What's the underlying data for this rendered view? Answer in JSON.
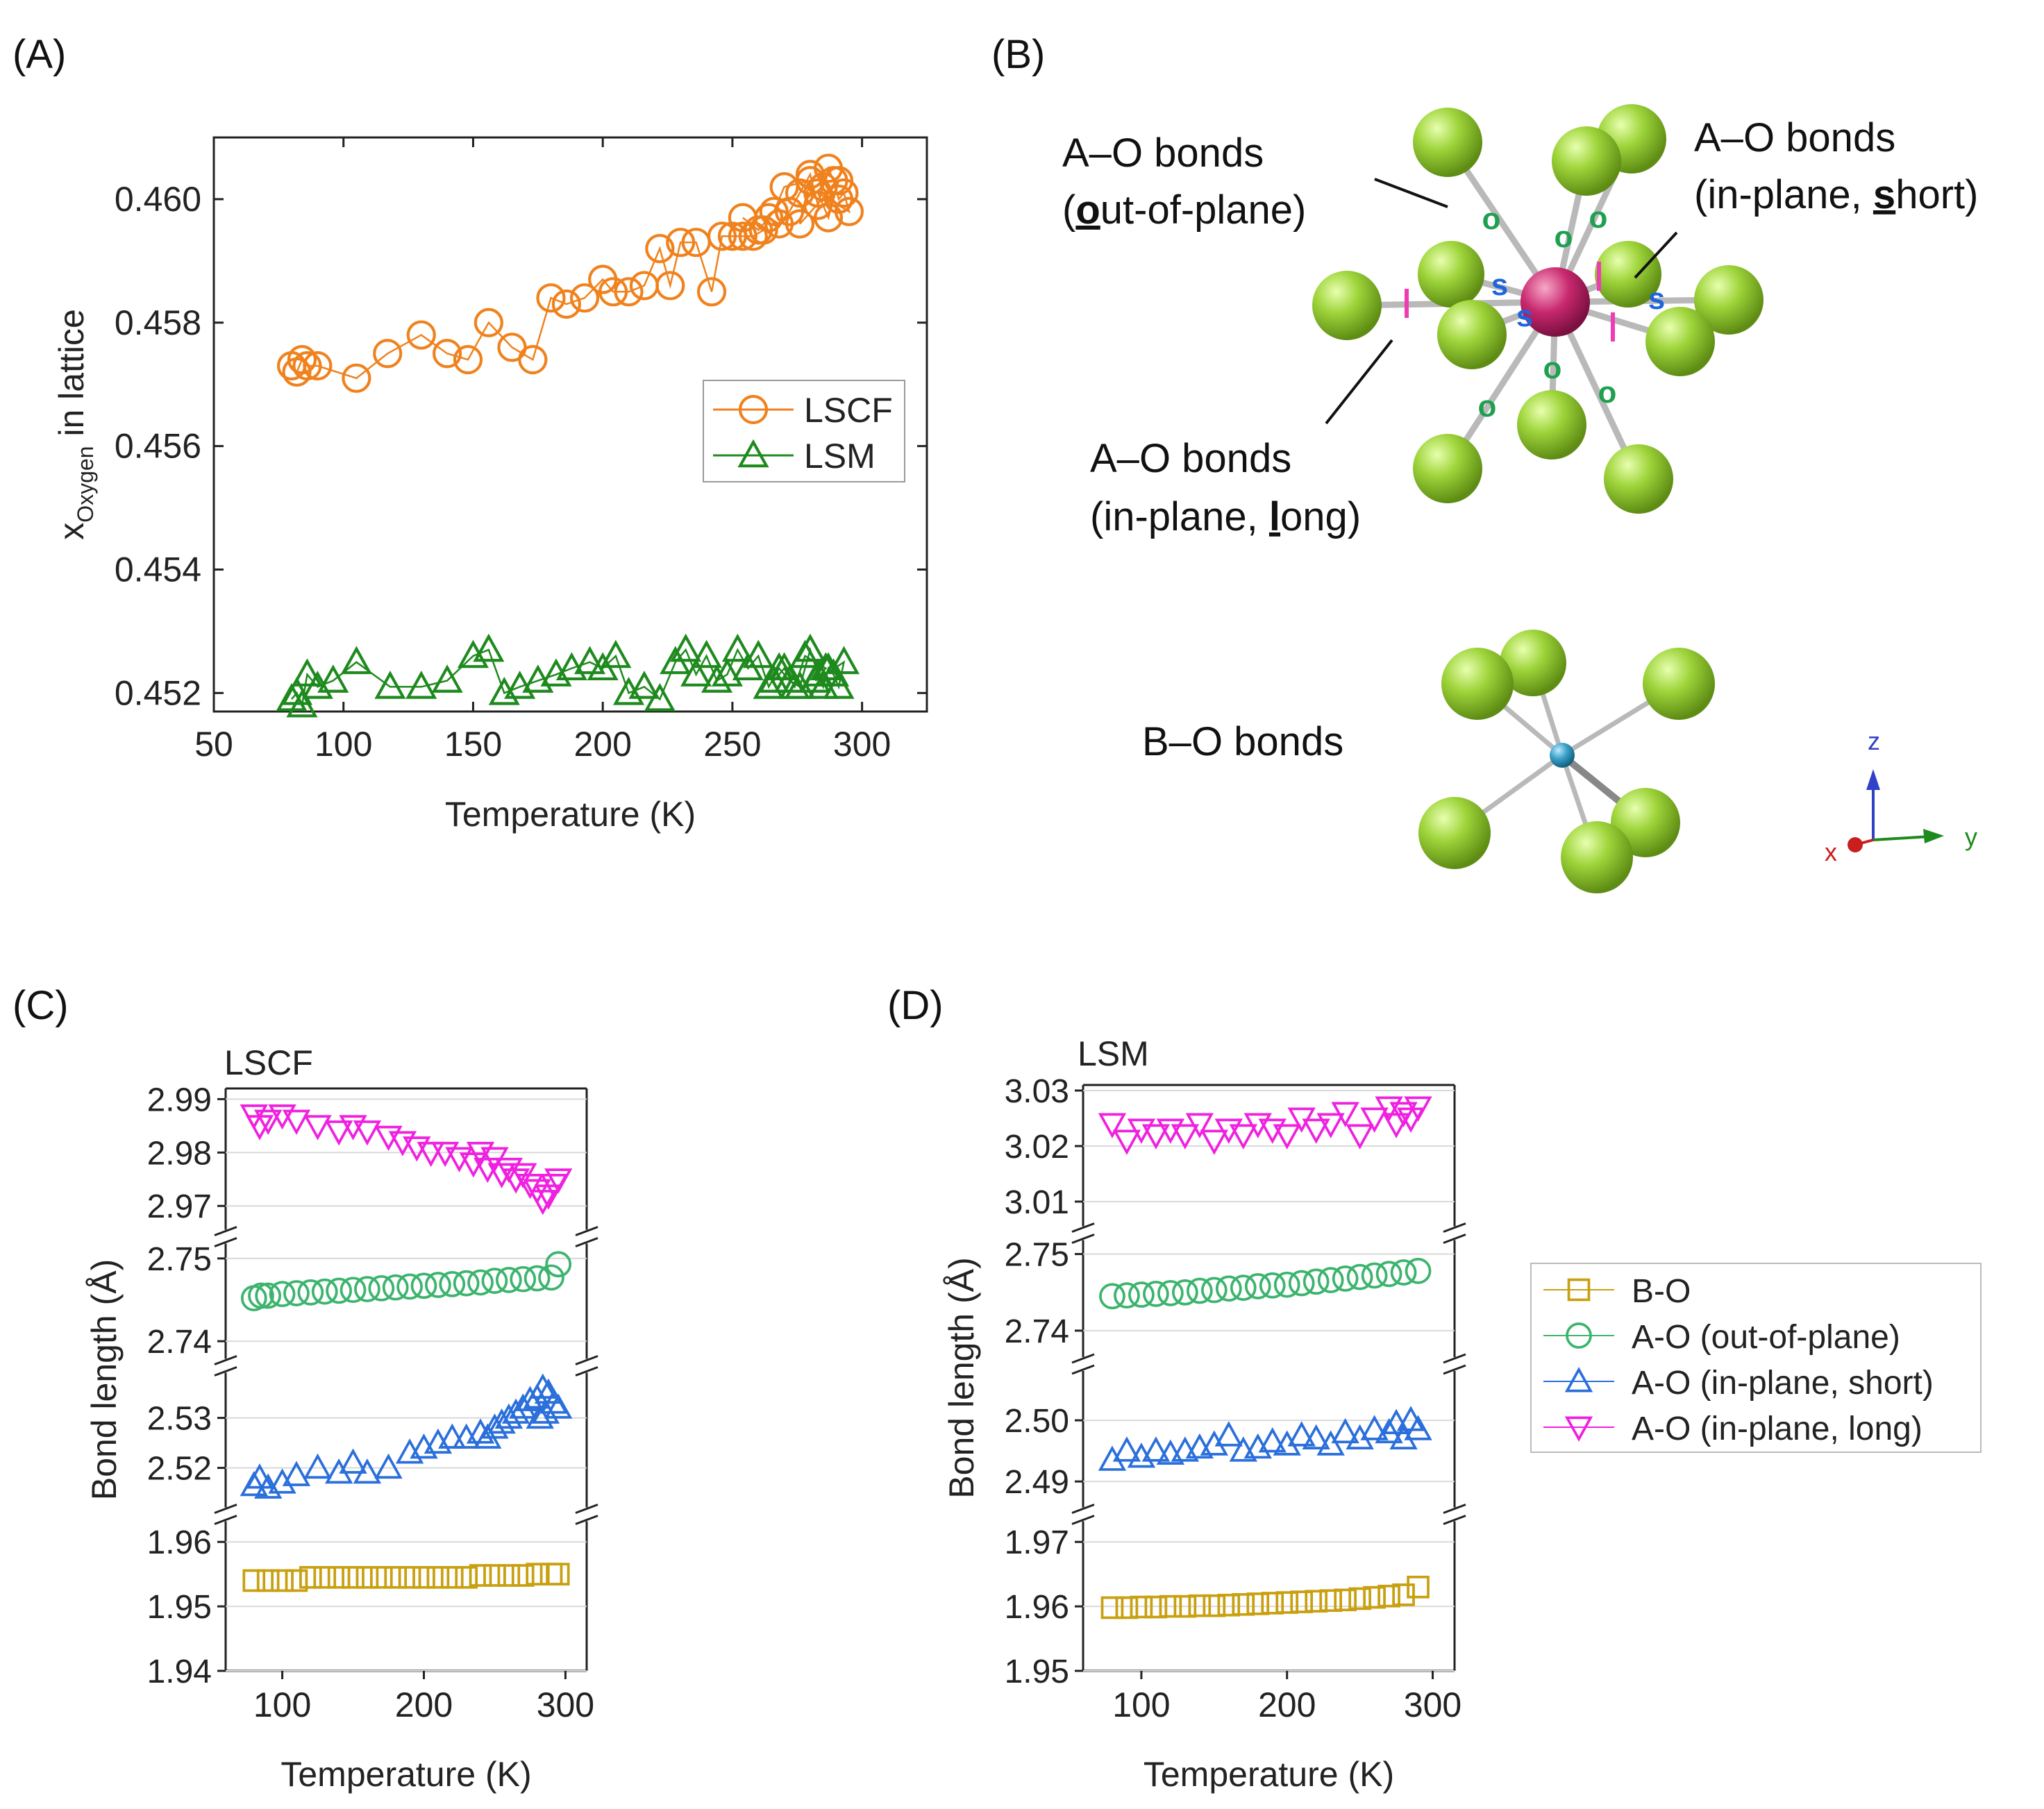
{
  "panel_labels": [
    "(A)",
    "(B)",
    "(C)",
    "(D)"
  ],
  "colors": {
    "lscf": "#f0821e",
    "lsm": "#1e8a1e",
    "bo": "#c8a010",
    "ao_out": "#3cb46e",
    "ao_short": "#2a6fdb",
    "ao_long": "#f020e0",
    "atom_o": "#8cc832",
    "atom_a": "#c8286e",
    "atom_b": "#3aa0c8",
    "marker_o": "#1ea050",
    "marker_s": "#1e64dc",
    "marker_l": "#f03cb4"
  },
  "panelB": {
    "labels": {
      "ao_out_line1": "A–O bonds",
      "ao_out_line2_bold": "o",
      "ao_out_line2_rest": "ut-of-plane)",
      "ao_out_line2_open": "(",
      "ao_short_line1": "A–O bonds",
      "ao_short_line2_pre": "(in-plane, ",
      "ao_short_line2_bold": "s",
      "ao_short_line2_rest": "hort)",
      "ao_long_line1": "A–O bonds",
      "ao_long_line2_pre": "(in-plane, ",
      "ao_long_line2_bold": "l",
      "ao_long_line2_rest": "ong)",
      "bo": "B–O bonds"
    },
    "markers": {
      "o": "o",
      "s": "s",
      "l": "l"
    },
    "axes": {
      "x": "x",
      "y": "y",
      "z": "z"
    }
  },
  "chart_data": [
    {
      "id": "A",
      "type": "scatter",
      "xlabel": "Temperature (K)",
      "ylabel_main": "x",
      "ylabel_sub": "Oxygen",
      "ylabel_rest": " in lattice",
      "xlim": [
        50,
        325
      ],
      "ylim": [
        0.4517,
        0.461
      ],
      "xticks": [
        50,
        100,
        150,
        200,
        250,
        300
      ],
      "yticks": [
        0.452,
        0.454,
        0.456,
        0.458,
        0.46
      ],
      "ytick_labels": [
        "0.452",
        "0.454",
        "0.456",
        "0.458",
        "0.460"
      ],
      "legend_position": "center-right",
      "series": [
        {
          "name": "LSCF",
          "marker": "circle",
          "line": true,
          "x": [
            80,
            82,
            84,
            86,
            90,
            105,
            117,
            130,
            140,
            148,
            156,
            165,
            173,
            180,
            186,
            193,
            200,
            204,
            210,
            216,
            222,
            226,
            230,
            236,
            242,
            246,
            250,
            254,
            258,
            262,
            264,
            268,
            272,
            276,
            280,
            283,
            285,
            287,
            289,
            291,
            293,
            295,
            283,
            287,
            291,
            276,
            280,
            270,
            266,
            260,
            254
          ],
          "y": [
            0.4573,
            0.4572,
            0.4574,
            0.4573,
            0.4573,
            0.4571,
            0.4575,
            0.4578,
            0.4575,
            0.4574,
            0.458,
            0.4576,
            0.4574,
            0.4584,
            0.4583,
            0.4584,
            0.4587,
            0.4585,
            0.4585,
            0.4586,
            0.4592,
            0.4586,
            0.4593,
            0.4593,
            0.4585,
            0.4594,
            0.4594,
            0.4594,
            0.4594,
            0.4595,
            0.4597,
            0.4596,
            0.4598,
            0.4601,
            0.4604,
            0.4599,
            0.4602,
            0.4605,
            0.4603,
            0.46,
            0.4601,
            0.4598,
            0.4601,
            0.4597,
            0.4603,
            0.4596,
            0.4603,
            0.4602,
            0.4598,
            0.4595,
            0.4597
          ]
        },
        {
          "name": "LSM",
          "marker": "triangle",
          "line": true,
          "x": [
            80,
            82,
            84,
            86,
            90,
            96,
            105,
            118,
            130,
            140,
            150,
            156,
            162,
            168,
            175,
            182,
            188,
            195,
            200,
            205,
            210,
            216,
            222,
            228,
            232,
            236,
            240,
            244,
            248,
            252,
            256,
            260,
            264,
            268,
            272,
            276,
            280,
            283,
            285,
            287,
            289,
            291,
            293,
            282,
            286,
            278,
            274,
            270,
            266
          ],
          "y": [
            0.4519,
            0.452,
            0.4518,
            0.4523,
            0.4521,
            0.4522,
            0.4525,
            0.4521,
            0.4521,
            0.4522,
            0.4526,
            0.4527,
            0.452,
            0.4521,
            0.4522,
            0.4523,
            0.4524,
            0.4525,
            0.4524,
            0.4526,
            0.452,
            0.4521,
            0.4519,
            0.4525,
            0.4527,
            0.4523,
            0.4526,
            0.4522,
            0.4523,
            0.4527,
            0.4524,
            0.4526,
            0.4521,
            0.4524,
            0.4522,
            0.4521,
            0.4527,
            0.4523,
            0.4521,
            0.4524,
            0.4523,
            0.4521,
            0.4525,
            0.4522,
            0.4524,
            0.4526,
            0.4521,
            0.4524,
            0.4522
          ]
        }
      ]
    },
    {
      "id": "C",
      "type": "scatter",
      "title": "LSCF",
      "xlabel": "Temperature (K)",
      "ylabel": "Bond length (Å)",
      "xlim": [
        60,
        315
      ],
      "xticks": [
        100,
        200,
        300
      ],
      "broken_axis": true,
      "segments": [
        {
          "name": "A-O (in-plane, long)",
          "ylim": [
            2.966,
            2.992
          ],
          "yticks": [
            2.97,
            2.98,
            2.99
          ],
          "ytick_labels": [
            "2.97",
            "2.98",
            "2.99"
          ]
        },
        {
          "name": "A-O (out-of-plane)",
          "ylim": [
            2.7385,
            2.7515
          ],
          "yticks": [
            2.74,
            2.75
          ],
          "ytick_labels": [
            "2.74",
            "2.75"
          ]
        },
        {
          "name": "A-O (in-plane, short)",
          "ylim": [
            2.513,
            2.538
          ],
          "yticks": [
            2.52,
            2.53
          ],
          "ytick_labels": [
            "2.52",
            "2.53"
          ]
        },
        {
          "name": "B-O",
          "ylim": [
            1.94,
            1.9625
          ],
          "yticks": [
            1.94,
            1.95,
            1.96
          ],
          "ytick_labels": [
            "1.94",
            "1.95",
            "1.96"
          ]
        }
      ],
      "series": [
        {
          "name": "B-O",
          "marker": "square",
          "x": [
            80,
            90,
            100,
            110,
            120,
            130,
            140,
            150,
            160,
            170,
            180,
            190,
            200,
            210,
            220,
            230,
            240,
            250,
            260,
            270,
            280,
            290,
            295
          ],
          "y": [
            1.954,
            1.954,
            1.954,
            1.954,
            1.9545,
            1.9545,
            1.9545,
            1.9545,
            1.9545,
            1.9545,
            1.9545,
            1.9545,
            1.9545,
            1.9545,
            1.9545,
            1.9545,
            1.9548,
            1.9548,
            1.9548,
            1.9548,
            1.955,
            1.955,
            1.955
          ]
        },
        {
          "name": "A-O (out-of-plane)",
          "marker": "circle",
          "x": [
            80,
            85,
            90,
            100,
            110,
            120,
            130,
            140,
            150,
            160,
            170,
            180,
            190,
            200,
            210,
            220,
            230,
            240,
            250,
            260,
            270,
            280,
            290,
            295
          ],
          "y": [
            2.7452,
            2.7455,
            2.7455,
            2.7457,
            2.7458,
            2.7459,
            2.746,
            2.7461,
            2.7462,
            2.7463,
            2.7464,
            2.7465,
            2.7466,
            2.7467,
            2.7468,
            2.7469,
            2.747,
            2.7471,
            2.7473,
            2.7474,
            2.7475,
            2.7476,
            2.7477,
            2.7493
          ]
        },
        {
          "name": "A-O (in-plane, short)",
          "marker": "triangle",
          "x": [
            80,
            84,
            90,
            100,
            110,
            125,
            140,
            150,
            160,
            175,
            190,
            200,
            210,
            220,
            230,
            240,
            245,
            250,
            255,
            260,
            265,
            270,
            275,
            280,
            284,
            288,
            292,
            295,
            286,
            282
          ],
          "y": [
            2.5165,
            2.518,
            2.516,
            2.517,
            2.5185,
            2.52,
            2.519,
            2.521,
            2.519,
            2.52,
            2.523,
            2.524,
            2.525,
            2.526,
            2.526,
            2.527,
            2.526,
            2.528,
            2.529,
            2.53,
            2.531,
            2.532,
            2.5335,
            2.534,
            2.536,
            2.535,
            2.533,
            2.532,
            2.531,
            2.53
          ]
        },
        {
          "name": "A-O (in-plane, long)",
          "marker": "inverted-triangle",
          "x": [
            80,
            84,
            90,
            100,
            110,
            125,
            140,
            150,
            160,
            175,
            185,
            195,
            205,
            215,
            225,
            235,
            240,
            245,
            250,
            255,
            260,
            265,
            270,
            275,
            280,
            284,
            288,
            292,
            295
          ],
          "y": [
            2.987,
            2.985,
            2.986,
            2.987,
            2.986,
            2.985,
            2.984,
            2.985,
            2.984,
            2.983,
            2.982,
            2.981,
            2.98,
            2.98,
            2.979,
            2.978,
            2.98,
            2.977,
            2.979,
            2.976,
            2.977,
            2.975,
            2.976,
            2.974,
            2.973,
            2.971,
            2.972,
            2.974,
            2.975
          ]
        }
      ]
    },
    {
      "id": "D",
      "type": "scatter",
      "title": "LSM",
      "xlabel": "Temperature (K)",
      "ylabel": "Bond length (Å)",
      "xlim": [
        60,
        315
      ],
      "xticks": [
        100,
        200,
        300
      ],
      "broken_axis": true,
      "segments": [
        {
          "name": "A-O (in-plane, long)",
          "ylim": [
            3.006,
            3.031
          ],
          "yticks": [
            3.01,
            3.02,
            3.03
          ],
          "ytick_labels": [
            "3.01",
            "3.02",
            "3.03"
          ]
        },
        {
          "name": "A-O (out-of-plane)",
          "ylim": [
            2.737,
            2.7515
          ],
          "yticks": [
            2.74,
            2.75
          ],
          "ytick_labels": [
            "2.74",
            "2.75"
          ]
        },
        {
          "name": "A-O (in-plane, short)",
          "ylim": [
            2.4865,
            2.5075
          ],
          "yticks": [
            2.49,
            2.5
          ],
          "ytick_labels": [
            "2.49",
            "2.50"
          ]
        },
        {
          "name": "B-O",
          "ylim": [
            1.95,
            1.9725
          ],
          "yticks": [
            1.95,
            1.96,
            1.97
          ],
          "ytick_labels": [
            "1.95",
            "1.96",
            "1.97"
          ]
        }
      ],
      "series": [
        {
          "name": "B-O",
          "marker": "square",
          "x": [
            80,
            90,
            100,
            110,
            120,
            130,
            140,
            150,
            160,
            170,
            180,
            190,
            200,
            210,
            220,
            230,
            240,
            250,
            260,
            270,
            280,
            290
          ],
          "y": [
            1.9598,
            1.9598,
            1.9599,
            1.9599,
            1.96,
            1.96,
            1.9601,
            1.9601,
            1.9602,
            1.9603,
            1.9604,
            1.9605,
            1.9606,
            1.9607,
            1.9608,
            1.9609,
            1.961,
            1.9612,
            1.9614,
            1.9616,
            1.9618,
            1.963
          ]
        },
        {
          "name": "A-O (out-of-plane)",
          "marker": "circle",
          "x": [
            80,
            90,
            100,
            110,
            120,
            130,
            140,
            150,
            160,
            170,
            180,
            190,
            200,
            210,
            220,
            230,
            240,
            250,
            260,
            270,
            280,
            290
          ],
          "y": [
            2.7445,
            2.7446,
            2.7447,
            2.7448,
            2.7449,
            2.745,
            2.7452,
            2.7453,
            2.7455,
            2.7456,
            2.7458,
            2.7459,
            2.746,
            2.7462,
            2.7464,
            2.7466,
            2.7468,
            2.747,
            2.7472,
            2.7474,
            2.7476,
            2.7478
          ]
        },
        {
          "name": "A-O (in-plane, short)",
          "marker": "triangle",
          "x": [
            80,
            90,
            100,
            110,
            120,
            130,
            140,
            150,
            160,
            170,
            180,
            190,
            200,
            210,
            220,
            230,
            240,
            250,
            260,
            270,
            275,
            280,
            285,
            290
          ],
          "y": [
            2.4935,
            2.495,
            2.494,
            2.495,
            2.4945,
            2.495,
            2.4955,
            2.496,
            2.4975,
            2.495,
            2.4955,
            2.4965,
            2.496,
            2.4975,
            2.497,
            2.496,
            2.498,
            2.497,
            2.4985,
            2.498,
            2.4995,
            2.497,
            2.5,
            2.4985
          ]
        },
        {
          "name": "A-O (in-plane, long)",
          "marker": "inverted-triangle",
          "x": [
            80,
            90,
            100,
            110,
            120,
            130,
            140,
            150,
            160,
            170,
            180,
            190,
            200,
            210,
            220,
            230,
            240,
            250,
            260,
            270,
            275,
            280,
            285,
            290
          ],
          "y": [
            3.024,
            3.021,
            3.023,
            3.022,
            3.023,
            3.022,
            3.024,
            3.021,
            3.023,
            3.022,
            3.024,
            3.023,
            3.022,
            3.025,
            3.023,
            3.024,
            3.026,
            3.022,
            3.025,
            3.027,
            3.024,
            3.026,
            3.025,
            3.027
          ]
        }
      ],
      "legend": {
        "position": "right",
        "entries": [
          "B-O",
          "A-O (out-of-plane)",
          "A-O (in-plane, short)",
          "A-O (in-plane, long)"
        ],
        "markers": [
          "square",
          "circle",
          "triangle",
          "inverted-triangle"
        ]
      }
    }
  ]
}
